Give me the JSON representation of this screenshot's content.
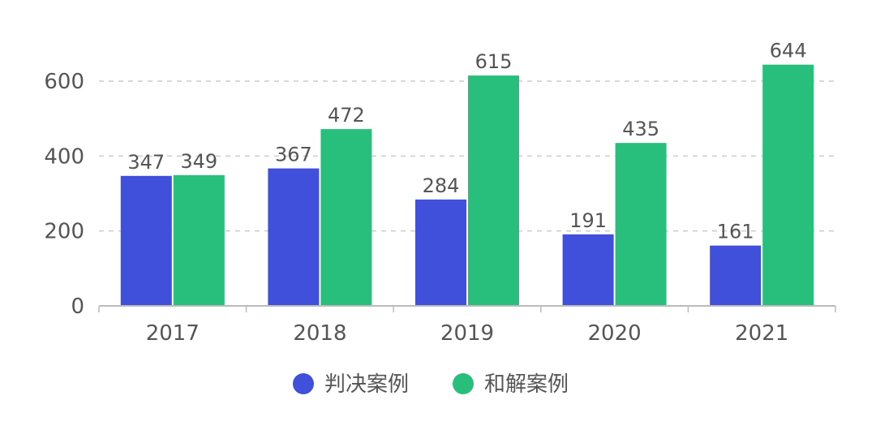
{
  "chart_data": {
    "type": "bar",
    "categories": [
      "2017",
      "2018",
      "2019",
      "2020",
      "2021"
    ],
    "series": [
      {
        "name": "判决案例",
        "values": [
          347,
          367,
          284,
          191,
          161
        ],
        "color": "#4050da"
      },
      {
        "name": "和解案例",
        "values": [
          349,
          472,
          615,
          435,
          644
        ],
        "color": "#28bf7d"
      }
    ],
    "yticks": [
      0,
      200,
      400,
      600
    ],
    "ylim": [
      0,
      700
    ],
    "grid": true,
    "legend_position": "bottom"
  }
}
